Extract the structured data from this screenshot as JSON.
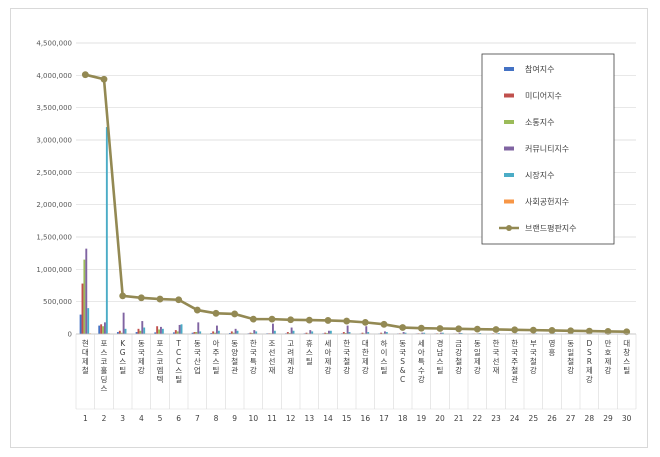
{
  "chart_data": {
    "type": "bar",
    "ylim": [
      0,
      4500000
    ],
    "yticks": [
      "0",
      "500,000",
      "1,000,000",
      "1,500,000",
      "2,000,000",
      "2,500,000",
      "3,000,000",
      "3,500,000",
      "4,000,000",
      "4,500,000"
    ],
    "ytick_values": [
      0,
      500000,
      1000000,
      1500000,
      2000000,
      2500000,
      3000000,
      3500000,
      4000000,
      4500000
    ],
    "grid": true,
    "legend_position": "top-right",
    "categories": [
      "현대제철",
      "포스코홀딩스",
      "KG스틸",
      "동국제강",
      "포스코엠텍",
      "TCC스틸",
      "동국산업",
      "아주스틸",
      "동양철관",
      "한국특강",
      "조선선재",
      "고려제강",
      "휴스틸",
      "세아제강",
      "한국철강",
      "대한제강",
      "하이스틸",
      "동국S&C",
      "세아특수강",
      "경남스틸",
      "금강철강",
      "동일제강",
      "한국선재",
      "한국주철관",
      "부국철강",
      "영흥",
      "동일철강",
      "DSR제강",
      "만호제강",
      "대창스틸"
    ],
    "ranks": [
      "1",
      "2",
      "3",
      "4",
      "5",
      "6",
      "7",
      "8",
      "9",
      "10",
      "11",
      "12",
      "13",
      "14",
      "15",
      "16",
      "17",
      "18",
      "19",
      "20",
      "21",
      "22",
      "23",
      "24",
      "25",
      "26",
      "27",
      "28",
      "29",
      "30"
    ],
    "series": [
      {
        "name": "참여지수",
        "color": "#4472c4",
        "type": "bar",
        "values": [
          300000,
          130000,
          30000,
          30000,
          25000,
          25000,
          20000,
          15000,
          15000,
          10000,
          10000,
          10000,
          10000,
          10000,
          10000,
          8000,
          8000,
          8000,
          8000,
          8000,
          6000,
          6000,
          6000,
          6000,
          5000,
          5000,
          5000,
          5000,
          4000,
          4000
        ]
      },
      {
        "name": "미디어지수",
        "color": "#c0504d",
        "type": "bar",
        "values": [
          780000,
          150000,
          50000,
          80000,
          120000,
          60000,
          30000,
          40000,
          40000,
          20000,
          10000,
          30000,
          20000,
          20000,
          30000,
          20000,
          20000,
          10000,
          10000,
          10000,
          8000,
          8000,
          10000,
          8000,
          8000,
          6000,
          6000,
          6000,
          5000,
          5000
        ]
      },
      {
        "name": "소통지수",
        "color": "#9bbb59",
        "type": "bar",
        "values": [
          1150000,
          120000,
          20000,
          50000,
          70000,
          40000,
          30000,
          20000,
          20000,
          15000,
          10000,
          15000,
          10000,
          15000,
          15000,
          10000,
          10000,
          8000,
          8000,
          8000,
          6000,
          6000,
          6000,
          6000,
          5000,
          5000,
          5000,
          5000,
          4000,
          4000
        ]
      },
      {
        "name": "커뮤니티지수",
        "color": "#8064a2",
        "type": "bar",
        "values": [
          1320000,
          180000,
          330000,
          200000,
          110000,
          140000,
          180000,
          130000,
          80000,
          60000,
          160000,
          100000,
          60000,
          50000,
          130000,
          120000,
          40000,
          30000,
          20000,
          20000,
          20000,
          10000,
          10000,
          10000,
          10000,
          8000,
          8000,
          8000,
          6000,
          6000
        ]
      },
      {
        "name": "시장지수",
        "color": "#4bacc6",
        "type": "bar",
        "values": [
          400000,
          3200000,
          80000,
          100000,
          80000,
          150000,
          40000,
          50000,
          50000,
          40000,
          50000,
          50000,
          40000,
          50000,
          30000,
          30000,
          30000,
          20000,
          20000,
          20000,
          15000,
          15000,
          15000,
          10000,
          10000,
          10000,
          8000,
          8000,
          6000,
          6000
        ]
      },
      {
        "name": "사회공헌지수",
        "color": "#f79646",
        "type": "bar",
        "values": [
          10000,
          10000,
          5000,
          5000,
          5000,
          5000,
          5000,
          5000,
          5000,
          3000,
          3000,
          3000,
          3000,
          3000,
          3000,
          3000,
          3000,
          2000,
          2000,
          2000,
          2000,
          2000,
          2000,
          2000,
          2000,
          2000,
          2000,
          2000,
          2000,
          2000
        ]
      },
      {
        "name": "브랜드평판지수",
        "color": "#938953",
        "type": "line",
        "values": [
          4010000,
          3940000,
          590000,
          560000,
          540000,
          530000,
          370000,
          320000,
          310000,
          230000,
          230000,
          220000,
          215000,
          210000,
          200000,
          180000,
          150000,
          100000,
          90000,
          85000,
          80000,
          75000,
          70000,
          65000,
          60000,
          55000,
          50000,
          45000,
          40000,
          35000
        ]
      }
    ]
  }
}
